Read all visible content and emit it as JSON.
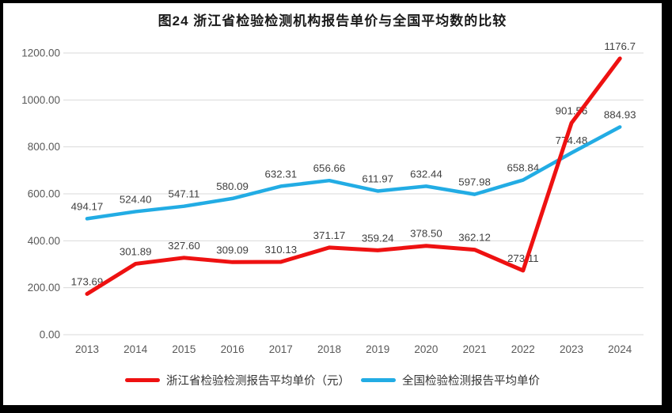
{
  "chart_data": {
    "type": "line",
    "title": "图24  浙江省检验检测机构报告单价与全国平均数的比较",
    "categories": [
      "2013",
      "2014",
      "2015",
      "2016",
      "2017",
      "2018",
      "2019",
      "2020",
      "2021",
      "2022",
      "2023",
      "2024"
    ],
    "series": [
      {
        "name": "浙江省检验检测报告平均单价（元）",
        "color": "#ee1111",
        "values": [
          173.69,
          301.89,
          327.6,
          309.09,
          310.13,
          371.17,
          359.24,
          378.5,
          362.12,
          273.11,
          901.56,
          1176.7
        ],
        "labels": [
          "173.69",
          "301.89",
          "327.60",
          "309.09",
          "310.13",
          "371.17",
          "359.24",
          "378.50",
          "362.12",
          "273.11",
          "901.56",
          "1176.7"
        ]
      },
      {
        "name": "全国检验检测报告平均单价",
        "color": "#22ace4",
        "values": [
          494.17,
          524.4,
          547.11,
          580.09,
          632.31,
          656.66,
          611.97,
          632.44,
          597.98,
          658.84,
          774.48,
          884.93
        ],
        "labels": [
          "494.17",
          "524.40",
          "547.11",
          "580.09",
          "632.31",
          "656.66",
          "611.97",
          "632.44",
          "597.98",
          "658.84",
          "774.48",
          "884.93"
        ]
      }
    ],
    "y_ticks": [
      {
        "value": 1200,
        "label": "1200.00"
      },
      {
        "value": 1000,
        "label": "1000.00"
      },
      {
        "value": 800,
        "label": "800.00"
      },
      {
        "value": 600,
        "label": "600.00"
      },
      {
        "value": 400,
        "label": "400.00"
      },
      {
        "value": 200,
        "label": "200.00"
      },
      {
        "value": 0,
        "label": "0.00"
      }
    ],
    "ylim": [
      0,
      1200
    ],
    "grid": true,
    "legend_position": "bottom",
    "colors": {
      "gridline": "#d9d9d9",
      "axis_text": "#595959",
      "data_label_text": "#404040",
      "frame_border": "#000000",
      "background": "#ffffff"
    }
  }
}
